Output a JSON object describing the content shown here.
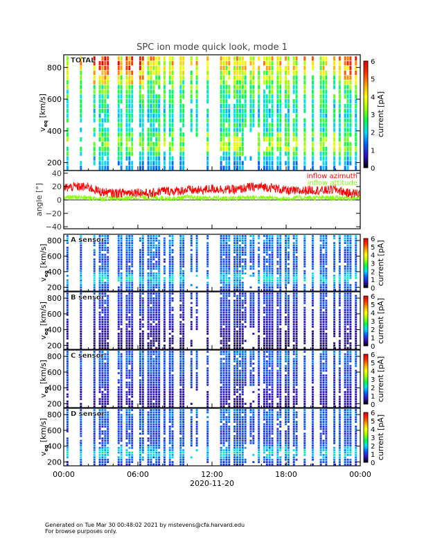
{
  "chart_data": {
    "title": "SPC ion mode quick look, mode 1",
    "type": "heatmap",
    "x_ticks": [
      "00:00",
      "06:00",
      "12:00",
      "18:00",
      "00:00"
    ],
    "x_hours": [
      0,
      6,
      12,
      18,
      24
    ],
    "x_label": "2020-11-20",
    "footer": [
      "Generated on Tue Mar 30 00:48:02 2021 by mstevens@cfa.harvard.edu",
      "For browse purposes only."
    ],
    "colorbar": {
      "label": "current [pA]",
      "ticks": [
        "0",
        "1",
        "2",
        "3",
        "4",
        "5",
        "6"
      ],
      "range": [
        0,
        6
      ],
      "colors": [
        "#000000",
        "#3010c0",
        "#0060ff",
        "#00e0ff",
        "#00ff40",
        "#a0ff00",
        "#ffff00",
        "#ffa000",
        "#ff3000",
        "#e00000"
      ]
    },
    "ylabel": "v_eq [km/s]",
    "ylabel_main": "v",
    "ylabel_sub": "eq",
    "ylabel_unit": "[km/s]",
    "y_ticks": [
      "200",
      "400",
      "600",
      "800"
    ],
    "y_tick_values": [
      200,
      400,
      600,
      800
    ],
    "ylim": [
      150,
      880
    ],
    "velocity_bins": [
      165,
      195,
      225,
      255,
      285,
      315,
      345,
      375,
      405,
      435,
      465,
      495,
      525,
      555,
      585,
      615,
      645,
      675,
      705,
      735,
      765,
      795,
      825,
      855
    ],
    "panels": [
      {
        "name": "TOTAL",
        "profile": [
          1.5,
          1.7,
          2.0,
          2.5,
          2.9,
          3.1,
          2.9,
          2.7,
          2.3,
          2.4,
          2.4,
          2.2,
          2.2,
          2.3,
          2.4,
          2.6,
          2.7,
          2.9,
          3.0,
          3.2,
          3.5,
          3.8,
          4.0,
          4.2
        ]
      },
      {
        "name": "A sensor",
        "profile": [
          1.1,
          1.2,
          1.3,
          1.6,
          1.9,
          2.0,
          1.8,
          1.6,
          1.3,
          1.3,
          1.2,
          1.1,
          1.1,
          1.1,
          1.1,
          1.2,
          1.2,
          1.3,
          1.3,
          1.4,
          1.4,
          1.5,
          1.5,
          1.6
        ]
      },
      {
        "name": "B sensor",
        "profile": [
          0.3,
          0.35,
          0.4,
          0.45,
          0.5,
          0.5,
          0.5,
          0.5,
          0.6,
          0.8,
          0.8,
          0.8,
          0.8,
          0.85,
          0.85,
          0.9,
          0.9,
          0.95,
          0.95,
          1.0,
          1.0,
          1.05,
          1.1,
          1.1
        ]
      },
      {
        "name": "C sensor",
        "profile": [
          0.5,
          0.5,
          0.55,
          0.6,
          0.65,
          0.7,
          0.7,
          0.75,
          0.8,
          1.0,
          1.0,
          1.0,
          1.0,
          1.05,
          1.05,
          1.1,
          1.1,
          1.15,
          1.2,
          1.2,
          1.25,
          1.3,
          1.3,
          1.35
        ]
      },
      {
        "name": "D sensor",
        "profile": [
          1.0,
          1.1,
          1.3,
          1.6,
          1.9,
          2.0,
          1.8,
          1.6,
          1.3,
          1.2,
          1.1,
          1.0,
          1.0,
          1.0,
          1.0,
          1.05,
          1.1,
          1.15,
          1.2,
          1.2,
          1.25,
          1.3,
          1.3,
          1.35
        ]
      }
    ],
    "angle_panel": {
      "ylabel": "angle [°]",
      "y_ticks": [
        "40",
        "20",
        "0",
        "−20",
        "−40"
      ],
      "y_tick_values": [
        40,
        20,
        0,
        -20,
        -40
      ],
      "ylim": [
        -43,
        44
      ],
      "series": [
        {
          "name": "inflow azimuth",
          "color": "#ff0000",
          "hourly": [
            18,
            20,
            19,
            12,
            10,
            11,
            12,
            9,
            14,
            13,
            15,
            14,
            17,
            16,
            15,
            19,
            20,
            18,
            14,
            13,
            15,
            14,
            16,
            10
          ]
        },
        {
          "name": "inflow attitude",
          "color": "#80ff00",
          "hourly": [
            3,
            4,
            3,
            2,
            3,
            2,
            4,
            3,
            3,
            2,
            4,
            3,
            3,
            2,
            3,
            4,
            3,
            3,
            2,
            3,
            3,
            3,
            3,
            3
          ]
        }
      ]
    }
  }
}
